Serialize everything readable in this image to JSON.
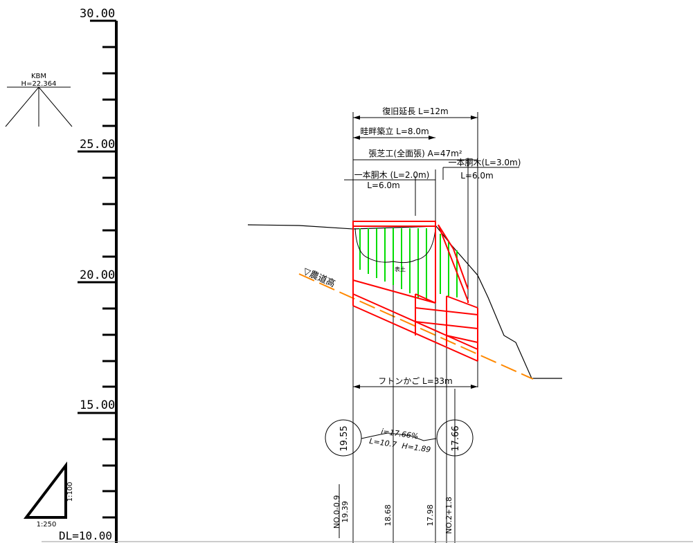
{
  "scale": {
    "labels": [
      "30.00",
      "25.00",
      "20.00",
      "15.00"
    ],
    "datum": "DL=10.00"
  },
  "kbm": {
    "name": "KBM",
    "height": "H=22.364"
  },
  "ratio": {
    "vertical": "1:100",
    "horizontal": "1:250"
  },
  "dimensions": {
    "restoration": "復旧延長  L=12m",
    "levee": "畦畔築立 L=8.0m",
    "turf": "張芝工(全面張) A=47m²",
    "post_left": "一本胴木 (L=2.0m)",
    "post_left_len": "L=6.0m",
    "post_right": "一本胴木(L=3.0m)",
    "post_right_len": "L=6.0m",
    "gabion": "フトンかご  L=33m"
  },
  "labels": {
    "farm_road": "▽農道高",
    "soil": "表土"
  },
  "elevations": {
    "left": "19.55",
    "right": "17.66"
  },
  "gradient": {
    "slope": "i=17.66%",
    "length": "L=10.7",
    "height": "H=1.89"
  },
  "stations": {
    "left": "NO.0-0.9",
    "left_elev": "19.39",
    "mid1": "18.68",
    "mid2": "17.98",
    "right": "NO.2+1.8"
  },
  "colors": {
    "structure": "#ff0000",
    "turf": "#00dd00",
    "road_line": "#ff8800",
    "ink": "#000000"
  }
}
